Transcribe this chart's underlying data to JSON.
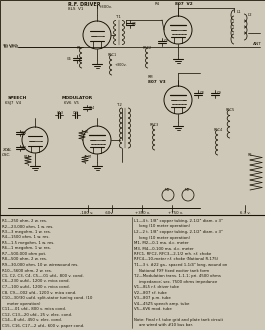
{
  "bg_color": "#cec8b8",
  "circuit_color": "#1a1408",
  "text_color": "#1a1408",
  "fig_width": 2.65,
  "fig_height": 3.3,
  "dpi": 100,
  "parts_list_left": [
    "R1—250 ohm, 2 w. res.",
    "R2—23,000 ohm, 1 w. res.",
    "R3—3 megohm, 1 w. res.",
    "R4—1500 ohm, 1 w. res.",
    "R5—1.5 megohm, 1 w. res.",
    "R6—1 megohm, 1 w. res.",
    "R7—500,000 ohm pot.",
    "R8—500 ohm, 2 w. res.",
    "R9—30,000 ohm, 10 w. wirewound res.",
    "R10—5600 ohm, 2 w. res.",
    "C1, C2, C3, C4, C5—.01 ufd., 800 v. cond.",
    "C6—230 uufd., 1200 v. mica cond.",
    "C7—100 uufd., 1200 v. mica cond.",
    "C8, C9—.002 ufd., 1200 v. mica cond.",
    "C10—30/30 uufd. split-stator tuning cond. (10",
    "    meter operation)",
    "C11—.01 ufd., 800 v. mica cond.",
    "C12, C13—20 ufd., 25 v. elec. cond.",
    "C14—8 ufd., 450 v. elec. cond.",
    "C15, C16, C17—2 ufd., 600 v. paper cond."
  ],
  "parts_list_right": [
    "L1—4 t. 1/8\" copper tubing, 2-1/2\" diam. x 3\"",
    "    long (10 meter operation)",
    "L2—2 t. 1/8\" copper tubing, 2-1/2\" diam. x 3\"",
    "    long (10 meter operation)",
    "M1, M2—0-1 ma. d.c. meter",
    "M3, M4—0-100 ma. d.c. meter",
    "RFC1, RFC2, RFC3—2-1/2 mh. r.f. choke",
    "RFC4—10-meter r.f. choke (National R-175)",
    "T1—3 t. #22 ga., spaced 1-1/4\" long, wound on",
    "    National FXF fixed exciter tank form",
    "T2—Modulation trans. 1-1.1; pri. 4500 ohms",
    "    impedance; sec. 7500 ohms impedance",
    "V1—8L5 r.f. driver tube",
    "V2—807 r.f. tube",
    "V3—807 p.m. tube",
    "V4—45Z5 speech amp. tube",
    "V5—6V6 mod. tube",
    "",
    "Note: Final r.f. tube grid and plate tank circuit",
    "    are wired with #10 bus bar."
  ]
}
